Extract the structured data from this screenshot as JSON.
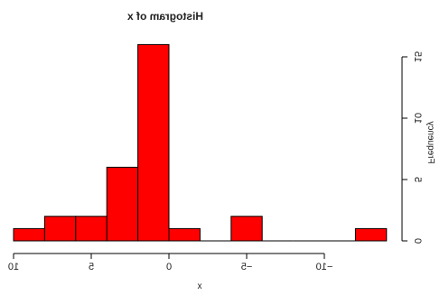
{
  "chart_data": {
    "type": "bar",
    "title": "Histogram of x",
    "xlabel": "x",
    "ylabel": "Frequency",
    "mirrored": true,
    "bin_edges": [
      10,
      8,
      6,
      4,
      2,
      0,
      -2,
      -4,
      -6,
      -8,
      -10,
      -12,
      -14
    ],
    "values": [
      1,
      2,
      2,
      6,
      16,
      1,
      0,
      2,
      0,
      0,
      0,
      1
    ],
    "xticks": [
      10,
      5,
      0,
      -5,
      -10
    ],
    "xtick_labels": [
      "10",
      "5",
      "0",
      "−5",
      "−10"
    ],
    "yticks": [
      0,
      5,
      10,
      15
    ],
    "ytick_labels": [
      "0",
      "5",
      "10",
      "15"
    ],
    "xlim": [
      10,
      -14
    ],
    "ylim": [
      0,
      16
    ],
    "bar_color": "#ff0000",
    "edge_color": "#000000"
  }
}
